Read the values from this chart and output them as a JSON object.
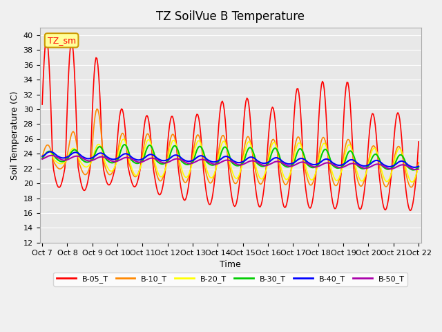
{
  "title": "TZ SoilVue B Temperature",
  "xlabel": "Time",
  "ylabel": "Soil Temperature (C)",
  "ylim": [
    12,
    41
  ],
  "yticks": [
    12,
    14,
    16,
    18,
    20,
    22,
    24,
    26,
    28,
    30,
    32,
    34,
    36,
    38,
    40
  ],
  "plot_bg_color": "#e8e8e8",
  "annotation_text": "TZ_sm",
  "annotation_bg": "#ffff99",
  "annotation_border": "#cc9900",
  "series_colors": {
    "B-05_T": "#ff0000",
    "B-10_T": "#ff8800",
    "B-20_T": "#ffff00",
    "B-30_T": "#00cc00",
    "B-40_T": "#0000ff",
    "B-50_T": "#aa00aa"
  },
  "series_linewidths": {
    "B-05_T": 1.2,
    "B-10_T": 1.2,
    "B-20_T": 1.2,
    "B-30_T": 1.5,
    "B-40_T": 1.5,
    "B-50_T": 1.5
  },
  "x_labels": [
    "Oct 7",
    "Oct 8",
    "Oct 9",
    "Oct 10",
    "Oct 11",
    "Oct 12",
    "Oct 13",
    "Oct 14",
    "Oct 15",
    "Oct 16",
    "Oct 17",
    "Oct 18",
    "Oct 19",
    "Oct 20",
    "Oct 21",
    "Oct 22"
  ],
  "peak_scales_b05": [
    17,
    17,
    16,
    8,
    7,
    7,
    7,
    9,
    10,
    8,
    11,
    12,
    13,
    8,
    8,
    9
  ],
  "trough_scales_b05": [
    3,
    3,
    3.5,
    2,
    3,
    4,
    4.5,
    5,
    5,
    5,
    5,
    5,
    5,
    5,
    5,
    5
  ],
  "peak_scales_b10": [
    2,
    3,
    8,
    4,
    4,
    4,
    4,
    4,
    4,
    3.5,
    4,
    4,
    4,
    3,
    3,
    3
  ],
  "trough_scales_b10": [
    1,
    1,
    2,
    1.5,
    2,
    2.5,
    2.5,
    2.5,
    2.5,
    2.5,
    2.5,
    2.5,
    2.5,
    2.5,
    2.5,
    2.5
  ],
  "peak_scales_b20": [
    1,
    1.5,
    2,
    3,
    3,
    3,
    3,
    3,
    3,
    3,
    3,
    3,
    3,
    2.5,
    2.5,
    2.5
  ],
  "trough_scales_b20": [
    0.5,
    0.5,
    1,
    1.5,
    2,
    2,
    2,
    2,
    2,
    2,
    2,
    2,
    2,
    2,
    2,
    2
  ],
  "peak_scales_b30": [
    0.8,
    1,
    1.5,
    2,
    2,
    2,
    2,
    2,
    2,
    2,
    2,
    2,
    2,
    1.5,
    1.5,
    1.5
  ],
  "day_indices": [
    0,
    1,
    2,
    3,
    4,
    5,
    6,
    7,
    8,
    9,
    10,
    11,
    12,
    13,
    14,
    15
  ]
}
